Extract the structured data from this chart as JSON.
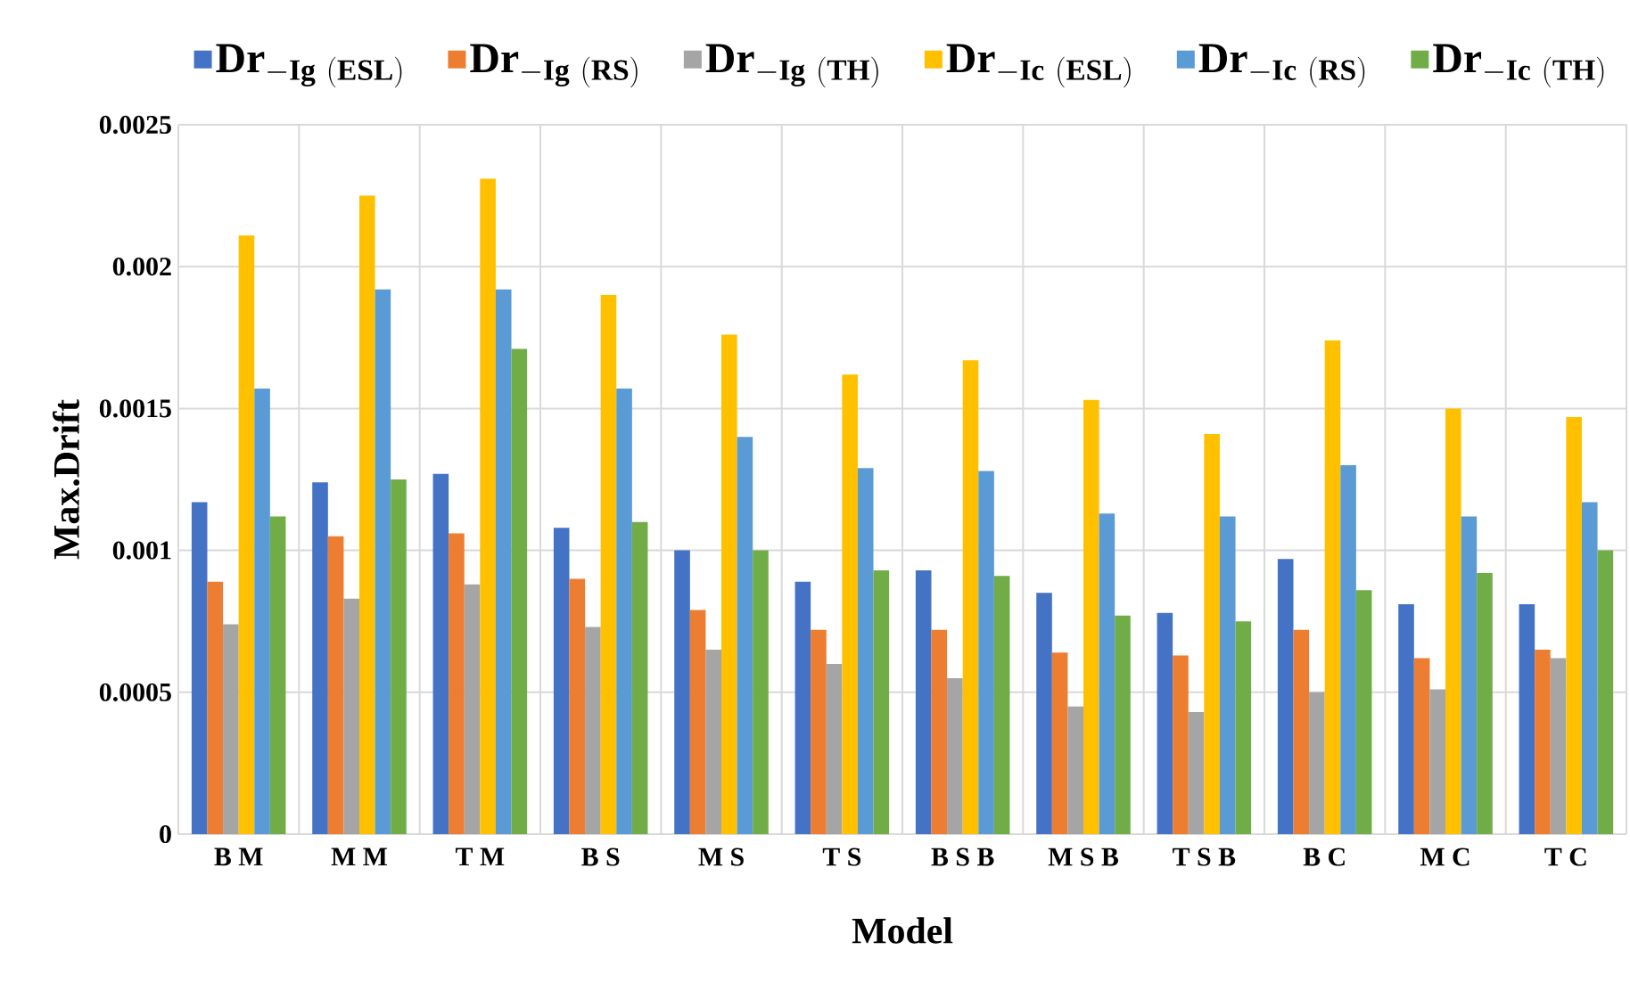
{
  "chart_data": {
    "type": "bar",
    "xlabel": "Model",
    "ylabel": "Max.Drift",
    "categories": [
      "B M",
      "M M",
      "T M",
      "B S",
      "M S",
      "T S",
      "B S B",
      "M S B",
      "T S B",
      "B C",
      "M C",
      "T C"
    ],
    "series": [
      {
        "name": "\\mathbf{Dr}_{\\mathbf{-Ig\\ (ESL)}}",
        "color": "#4472c4",
        "values": [
          0.00117,
          0.00124,
          0.00127,
          0.00108,
          0.001,
          0.00089,
          0.00093,
          0.00085,
          0.00078,
          0.00097,
          0.00081,
          0.00081
        ]
      },
      {
        "name": "\\mathbf{Dr}_{\\mathbf{-Ig\\ (RS)}}",
        "color": "#ed7d31",
        "values": [
          0.00089,
          0.00105,
          0.00106,
          0.0009,
          0.00079,
          0.00072,
          0.00072,
          0.00064,
          0.00063,
          0.00072,
          0.00062,
          0.00065
        ]
      },
      {
        "name": "\\mathbf{Dr}_{\\mathbf{-Ig\\ (TH)}}",
        "color": "#a5a5a5",
        "values": [
          0.00074,
          0.00083,
          0.00088,
          0.00073,
          0.00065,
          0.0006,
          0.00055,
          0.00045,
          0.00043,
          0.0005,
          0.00051,
          0.00062
        ]
      },
      {
        "name": "\\mathbf{Dr}_{\\mathbf{-Ic\\ (ESL)}}",
        "color": "#ffc000",
        "values": [
          0.00211,
          0.00225,
          0.00231,
          0.0019,
          0.00176,
          0.00162,
          0.00167,
          0.00153,
          0.00141,
          0.00174,
          0.0015,
          0.00147
        ]
      },
      {
        "name": "\\mathbf{Dr}_{\\mathbf{-Ic\\ (RS)}}",
        "color": "#5b9bd5",
        "values": [
          0.00157,
          0.00192,
          0.00192,
          0.00157,
          0.0014,
          0.00129,
          0.00128,
          0.00113,
          0.00112,
          0.0013,
          0.00112,
          0.00117
        ]
      },
      {
        "name": "\\mathbf{Dr}_{\\mathbf{-Ic\\ (TH)}}",
        "color": "#70ad47",
        "values": [
          0.00112,
          0.00125,
          0.00171,
          0.0011,
          0.001,
          0.00093,
          0.00091,
          0.00077,
          0.00075,
          0.00086,
          0.00092,
          0.001
        ]
      }
    ],
    "ylim": [
      0,
      0.0025
    ],
    "yticks": [
      0,
      0.0005,
      0.001,
      0.0015,
      0.002,
      0.0025
    ],
    "grid": true,
    "legend": "top"
  }
}
